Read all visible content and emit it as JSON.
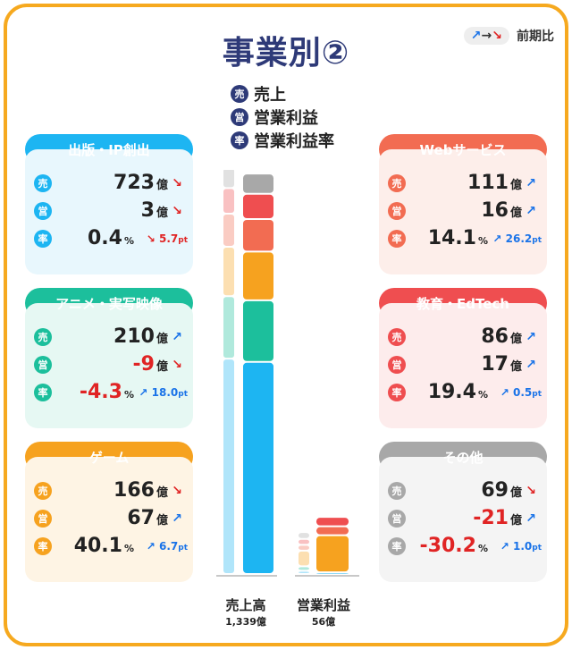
{
  "title": "事業別②",
  "legend_prev": {
    "label": "前期比",
    "symbols": [
      "↗",
      "→",
      "↘"
    ]
  },
  "keys": [
    {
      "badge": "売",
      "label": "売上"
    },
    {
      "badge": "営",
      "label": "営業利益"
    },
    {
      "badge": "率",
      "label": "営業利益率"
    }
  ],
  "units": {
    "oku": "億",
    "pct": "%",
    "pt": "pt"
  },
  "colors": {
    "publishing": "#1db5f2",
    "anime": "#1cbf9c",
    "game": "#f6a21f",
    "web": "#f26c52",
    "edu": "#ef4e50",
    "other": "#a8a8a8"
  },
  "segments": [
    {
      "key": "publishing",
      "name": "出版・IP創出",
      "sales": "723",
      "sales_trend": "↘",
      "op": "3",
      "op_trend": "↘",
      "rate": "0.4",
      "change": "5.7",
      "change_trend": "↘",
      "color": "#1db5f2",
      "light": "#e8f7fd",
      "op_neg": false,
      "rate_neg": false
    },
    {
      "key": "anime",
      "name": "アニメ・実写映像",
      "sales": "210",
      "sales_trend": "↗",
      "op": "-9",
      "op_trend": "↘",
      "rate": "-4.3",
      "change": "18.0",
      "change_trend": "↗",
      "color": "#1cbf9c",
      "light": "#e6f8f3",
      "op_neg": true,
      "rate_neg": true
    },
    {
      "key": "game",
      "name": "ゲーム",
      "sales": "166",
      "sales_trend": "↘",
      "op": "67",
      "op_trend": "↗",
      "rate": "40.1",
      "change": "6.7",
      "change_trend": "↗",
      "color": "#f6a21f",
      "light": "#fef4e4",
      "op_neg": false,
      "rate_neg": false
    },
    {
      "key": "web",
      "name": "Webサービス",
      "sales": "111",
      "sales_trend": "↗",
      "op": "16",
      "op_trend": "↗",
      "rate": "14.1",
      "change": "26.2",
      "change_trend": "↗",
      "color": "#f26c52",
      "light": "#fdeeea",
      "op_neg": false,
      "rate_neg": false
    },
    {
      "key": "edu",
      "name": "教育・EdTech",
      "sales": "86",
      "sales_trend": "↗",
      "op": "17",
      "op_trend": "↗",
      "rate": "19.4",
      "change": "0.5",
      "change_trend": "↗",
      "color": "#ef4e50",
      "light": "#fdecec",
      "op_neg": false,
      "rate_neg": false
    },
    {
      "key": "other",
      "name": "その他",
      "sales": "69",
      "sales_trend": "↘",
      "op": "-21",
      "op_trend": "↗",
      "rate": "-30.2",
      "change": "1.0",
      "change_trend": "↗",
      "color": "#a8a8a8",
      "light": "#f4f4f4",
      "op_neg": true,
      "rate_neg": true
    }
  ],
  "chart_data": {
    "type": "bar",
    "stacked": true,
    "categories": [
      "売上高",
      "営業利益"
    ],
    "category_totals": [
      "1,339億",
      "56億"
    ],
    "series": [
      {
        "name": "出版・IP創出",
        "values": [
          723,
          3
        ]
      },
      {
        "name": "アニメ・実写映像",
        "values": [
          210,
          -9
        ]
      },
      {
        "name": "ゲーム",
        "values": [
          166,
          67
        ]
      },
      {
        "name": "Webサービス",
        "values": [
          111,
          16
        ]
      },
      {
        "name": "教育・EdTech",
        "values": [
          86,
          17
        ]
      },
      {
        "name": "その他",
        "values": [
          69,
          -21
        ]
      }
    ]
  }
}
